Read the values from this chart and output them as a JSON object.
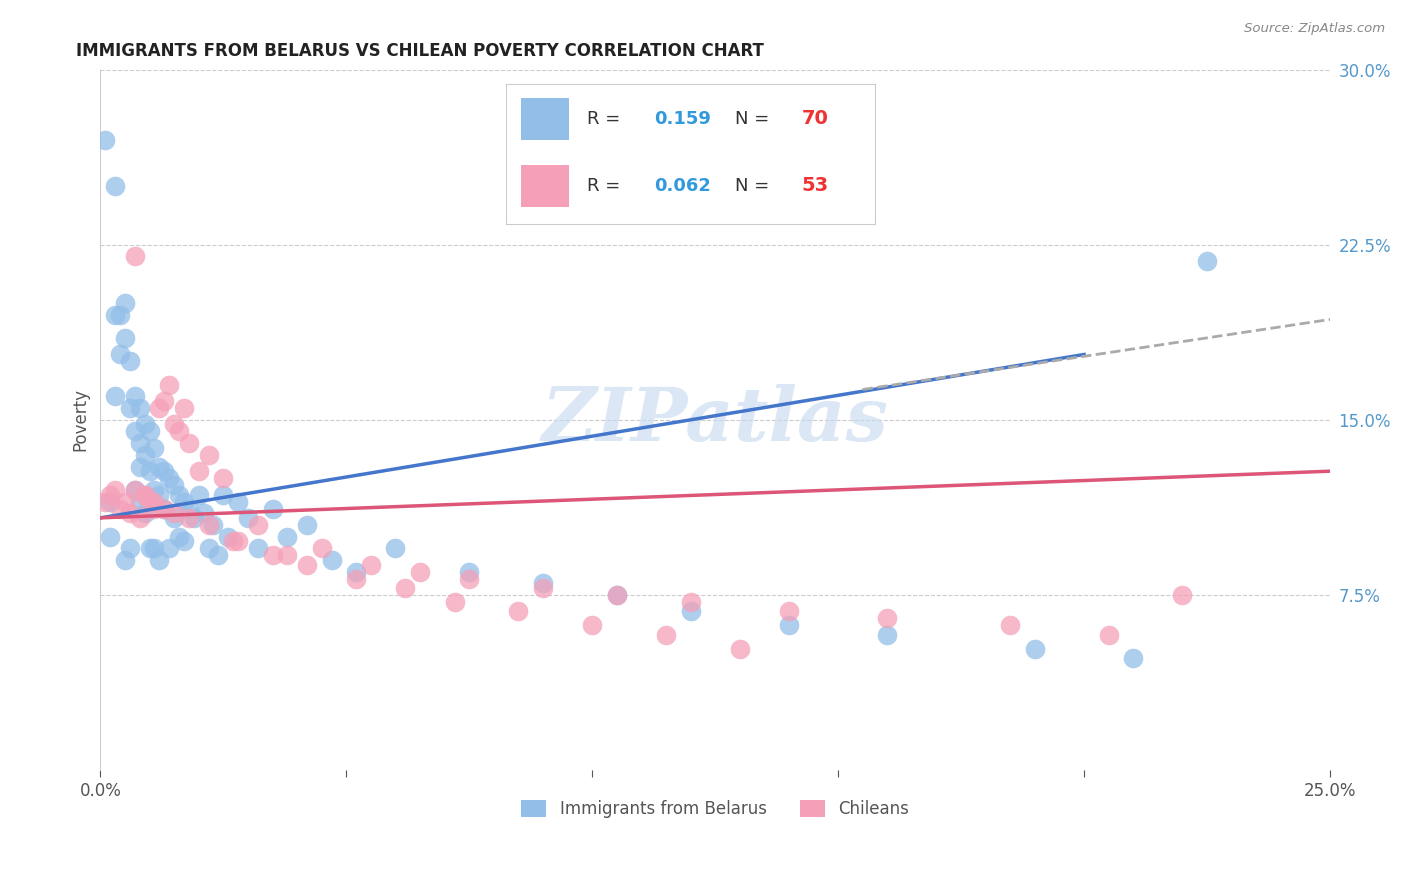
{
  "title": "IMMIGRANTS FROM BELARUS VS CHILEAN POVERTY CORRELATION CHART",
  "source": "Source: ZipAtlas.com",
  "ylabel": "Poverty",
  "xlim": [
    0.0,
    0.25
  ],
  "ylim": [
    0.0,
    0.3
  ],
  "yticks_right": [
    0.075,
    0.15,
    0.225,
    0.3
  ],
  "ytick_labels_right": [
    "7.5%",
    "15.0%",
    "22.5%",
    "30.0%"
  ],
  "legend_label1": "Immigrants from Belarus",
  "legend_label2": "Chileans",
  "color_blue": "#92BEE8",
  "color_pink": "#F5A0B8",
  "line_blue": "#4477CC",
  "line_pink": "#DD5577",
  "line_dash": "#AAAAAA",
  "watermark": "ZIPatlas",
  "blue_points_x": [
    0.001,
    0.002,
    0.002,
    0.003,
    0.003,
    0.003,
    0.004,
    0.004,
    0.005,
    0.005,
    0.005,
    0.006,
    0.006,
    0.006,
    0.007,
    0.007,
    0.007,
    0.008,
    0.008,
    0.008,
    0.008,
    0.009,
    0.009,
    0.009,
    0.01,
    0.01,
    0.01,
    0.011,
    0.011,
    0.011,
    0.012,
    0.012,
    0.012,
    0.013,
    0.013,
    0.014,
    0.014,
    0.015,
    0.015,
    0.016,
    0.016,
    0.017,
    0.017,
    0.018,
    0.019,
    0.02,
    0.021,
    0.022,
    0.023,
    0.024,
    0.025,
    0.026,
    0.028,
    0.03,
    0.032,
    0.035,
    0.038,
    0.042,
    0.047,
    0.052,
    0.06,
    0.075,
    0.09,
    0.105,
    0.12,
    0.14,
    0.16,
    0.19,
    0.21,
    0.225
  ],
  "blue_points_y": [
    0.27,
    0.115,
    0.1,
    0.25,
    0.195,
    0.16,
    0.195,
    0.178,
    0.2,
    0.185,
    0.09,
    0.175,
    0.155,
    0.095,
    0.16,
    0.145,
    0.12,
    0.155,
    0.14,
    0.13,
    0.115,
    0.148,
    0.135,
    0.11,
    0.145,
    0.128,
    0.095,
    0.138,
    0.12,
    0.095,
    0.13,
    0.118,
    0.09,
    0.128,
    0.112,
    0.125,
    0.095,
    0.122,
    0.108,
    0.118,
    0.1,
    0.115,
    0.098,
    0.112,
    0.108,
    0.118,
    0.11,
    0.095,
    0.105,
    0.092,
    0.118,
    0.1,
    0.115,
    0.108,
    0.095,
    0.112,
    0.1,
    0.105,
    0.09,
    0.085,
    0.095,
    0.085,
    0.08,
    0.075,
    0.068,
    0.062,
    0.058,
    0.052,
    0.048,
    0.218
  ],
  "pink_points_x": [
    0.001,
    0.002,
    0.003,
    0.004,
    0.005,
    0.006,
    0.007,
    0.008,
    0.009,
    0.01,
    0.011,
    0.012,
    0.013,
    0.014,
    0.015,
    0.016,
    0.017,
    0.018,
    0.02,
    0.022,
    0.025,
    0.028,
    0.032,
    0.038,
    0.045,
    0.055,
    0.065,
    0.075,
    0.09,
    0.105,
    0.12,
    0.14,
    0.16,
    0.185,
    0.205,
    0.22,
    0.007,
    0.009,
    0.011,
    0.013,
    0.015,
    0.018,
    0.022,
    0.027,
    0.035,
    0.042,
    0.052,
    0.062,
    0.072,
    0.085,
    0.1,
    0.115,
    0.13
  ],
  "pink_points_y": [
    0.115,
    0.118,
    0.12,
    0.112,
    0.115,
    0.11,
    0.22,
    0.108,
    0.118,
    0.115,
    0.112,
    0.155,
    0.158,
    0.165,
    0.148,
    0.145,
    0.155,
    0.14,
    0.128,
    0.135,
    0.125,
    0.098,
    0.105,
    0.092,
    0.095,
    0.088,
    0.085,
    0.082,
    0.078,
    0.075,
    0.072,
    0.068,
    0.065,
    0.062,
    0.058,
    0.075,
    0.12,
    0.118,
    0.115,
    0.112,
    0.11,
    0.108,
    0.105,
    0.098,
    0.092,
    0.088,
    0.082,
    0.078,
    0.072,
    0.068,
    0.062,
    0.058,
    0.052
  ],
  "blue_line_x": [
    0.0,
    0.2
  ],
  "blue_line_y": [
    0.108,
    0.178
  ],
  "pink_line_x": [
    0.0,
    0.25
  ],
  "pink_line_y": [
    0.108,
    0.128
  ],
  "dash_line_x": [
    0.155,
    0.25
  ],
  "dash_line_y": [
    0.163,
    0.193
  ]
}
